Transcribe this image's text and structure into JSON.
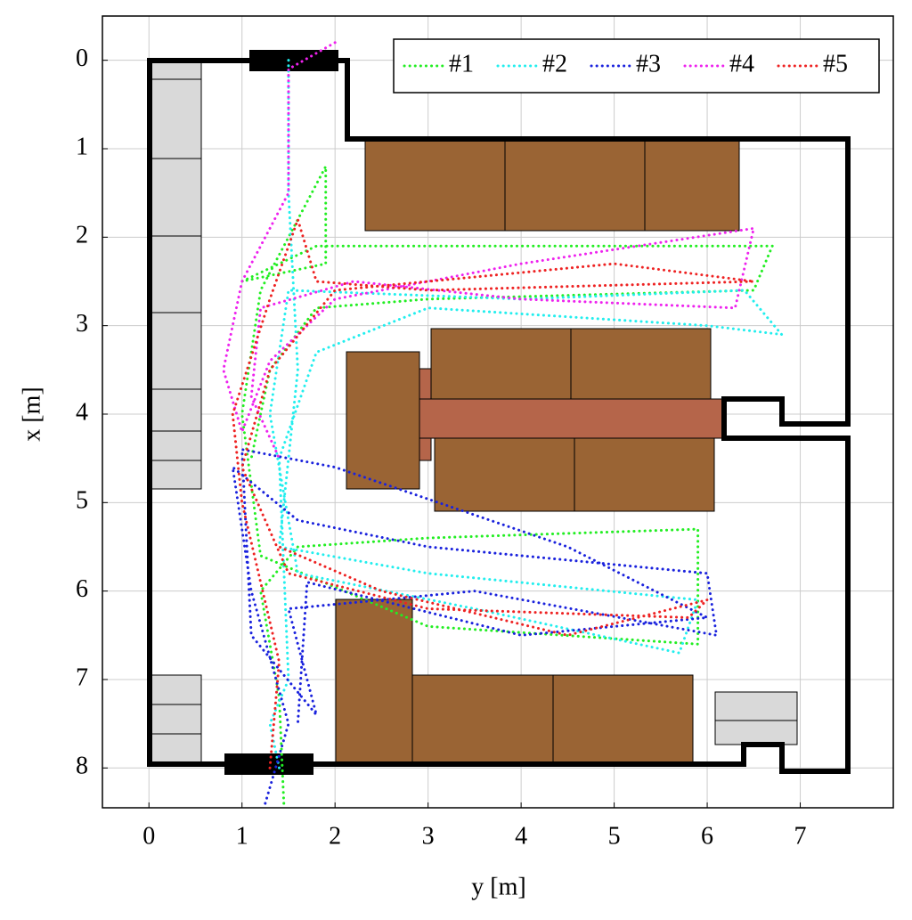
{
  "chart_data": {
    "type": "line",
    "x_label": "y [m]",
    "y_label": "x [m]",
    "xlim": [
      -0.5,
      8
    ],
    "xticks": [
      0,
      1,
      2,
      3,
      4,
      5,
      6,
      7
    ],
    "ylim": [
      -0.5,
      8.45
    ],
    "yticks": [
      0,
      1,
      2,
      3,
      4,
      5,
      6,
      7,
      8
    ],
    "y_inverted": true,
    "grid": true,
    "legend": "upper right",
    "series": [
      {
        "name": "#1",
        "color": "#22ee22",
        "x": [
          1.45,
          1.4,
          1.2,
          1.6,
          3,
          5.9,
          5.9,
          3,
          1.2,
          1.0,
          1.2,
          1.9,
          1.9,
          1.0,
          1.8,
          4,
          6.7,
          6.5,
          3,
          1.8,
          1.3,
          1.1
        ],
        "values": [
          8.4,
          7.2,
          6,
          5.5,
          5.4,
          5.3,
          6.6,
          6.4,
          5.6,
          4,
          2.6,
          1.2,
          2.3,
          2.5,
          2.1,
          2.1,
          2.1,
          2.6,
          2.7,
          2.8,
          3.5,
          4.5
        ]
      },
      {
        "name": "#2",
        "color": "#22eeee",
        "x": [
          1.5,
          1.5,
          1.6,
          1.4,
          3,
          5.9,
          5.7,
          3.5,
          1.6,
          1.3,
          1.5,
          4,
          6.4,
          6.8,
          6,
          3,
          1.8,
          1.4,
          1.5,
          1.3,
          1.4
        ],
        "values": [
          0,
          1.5,
          3.5,
          5.5,
          5.8,
          6.1,
          6.7,
          6.2,
          5.8,
          4,
          2.6,
          2.7,
          2.6,
          3.1,
          3,
          2.8,
          3.3,
          4.5,
          7,
          7.5,
          8
        ]
      },
      {
        "name": "#3",
        "color": "#1a22dd",
        "x": [
          1.25,
          1.5,
          1.1,
          0.9,
          1.6,
          3,
          6,
          6.1,
          3.5,
          1.5,
          1.8,
          1.1,
          1.0,
          2,
          4.5,
          6,
          4,
          1.7,
          1.6
        ],
        "values": [
          8.4,
          7.5,
          6,
          4.6,
          5.2,
          5.5,
          5.8,
          6.5,
          6.0,
          6.2,
          7.4,
          6.5,
          4.4,
          4.6,
          5.5,
          6.3,
          6.5,
          5.9,
          7.5
        ]
      },
      {
        "name": "#4",
        "color": "#ee22ee",
        "x": [
          2.0,
          1.5,
          1.5,
          1.0,
          0.8,
          1.0,
          1.3,
          2,
          4,
          6.5,
          6.3,
          4,
          2.2,
          1.2,
          1.1,
          1.4
        ],
        "values": [
          -0.2,
          0.1,
          1.5,
          2.5,
          3.5,
          4.2,
          3.4,
          2.7,
          2.3,
          1.9,
          2.8,
          2.7,
          2.5,
          2.8,
          3.8,
          4.5
        ]
      },
      {
        "name": "#5",
        "color": "#ee2222",
        "x": [
          1.3,
          1.4,
          1.0,
          0.9,
          1.3,
          1.6,
          1.8,
          3,
          6.5,
          5,
          2,
          1.3,
          1.0,
          1.5,
          3,
          5.8,
          6,
          4.5,
          2.5,
          1.4
        ],
        "values": [
          8,
          6.8,
          5,
          4,
          2.7,
          1.8,
          2.5,
          2.6,
          2.5,
          2.3,
          2.6,
          3.5,
          4.6,
          5.8,
          6.2,
          6.3,
          6.1,
          6.5,
          6,
          5.5
        ]
      }
    ]
  }
}
